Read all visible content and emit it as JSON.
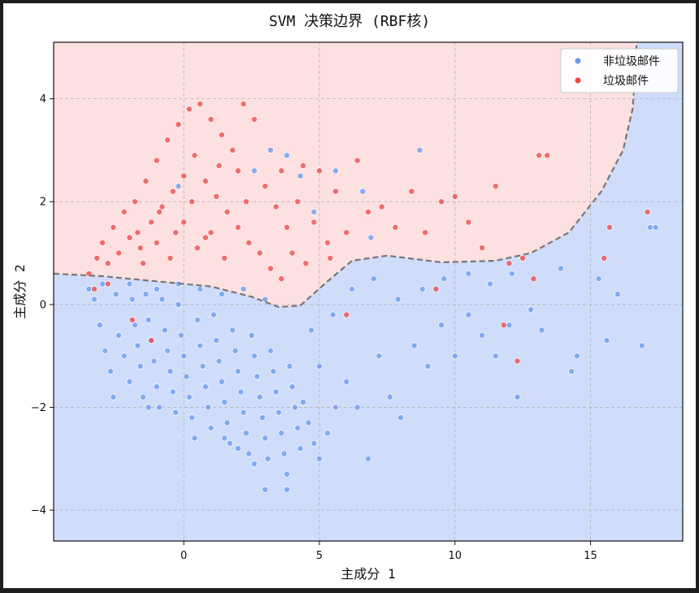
{
  "colors": {
    "background_frame": "#1e1e1e",
    "class0_region": "#cfdcfa",
    "class1_region": "#fde0e0",
    "class0_point": "#6699ee",
    "class1_point": "#ee4444",
    "boundary": "#777777",
    "grid": "#b5b5b5"
  },
  "chart_data": {
    "type": "scatter",
    "title": "SVM 决策边界 (RBF核)",
    "xlabel": "主成分 1",
    "ylabel": "主成分 2",
    "xlim": [
      -4.8,
      18.4
    ],
    "ylim": [
      -4.6,
      5.1
    ],
    "xticks": [
      0,
      5,
      10,
      15
    ],
    "yticks": [
      -4,
      -2,
      0,
      2,
      4
    ],
    "x_tick_labels": [
      "0",
      "5",
      "10",
      "15"
    ],
    "y_tick_labels": [
      "−4",
      "−2",
      "0",
      "2",
      "4"
    ],
    "grid": true,
    "grid_style": "dashed",
    "legend_position": "top-right",
    "decision_boundary": {
      "style": "dashed",
      "region_above": "垃圾邮件",
      "region_below": "非垃圾邮件",
      "points": [
        [
          -4.8,
          0.6
        ],
        [
          -3,
          0.55
        ],
        [
          -1,
          0.45
        ],
        [
          1,
          0.35
        ],
        [
          2.5,
          0.15
        ],
        [
          3.5,
          -0.05
        ],
        [
          4.3,
          -0.02
        ],
        [
          5.3,
          0.45
        ],
        [
          6.2,
          0.85
        ],
        [
          7.5,
          0.95
        ],
        [
          9.5,
          0.82
        ],
        [
          11.5,
          0.85
        ],
        [
          12.8,
          1.0
        ],
        [
          14.2,
          1.4
        ],
        [
          15.4,
          2.2
        ],
        [
          16.2,
          3.0
        ],
        [
          16.55,
          3.8
        ],
        [
          16.65,
          4.5
        ],
        [
          16.7,
          5.1
        ]
      ]
    },
    "series": [
      {
        "name": "非垃圾邮件",
        "points": [
          [
            -3.5,
            0.3
          ],
          [
            -3.3,
            0.1
          ],
          [
            -3.1,
            -0.4
          ],
          [
            -2.9,
            -0.9
          ],
          [
            -2.7,
            -1.3
          ],
          [
            -2.5,
            0.2
          ],
          [
            -2.4,
            -0.6
          ],
          [
            -2.2,
            -1.0
          ],
          [
            -2.0,
            -1.5
          ],
          [
            -1.9,
            0.1
          ],
          [
            -1.8,
            -0.4
          ],
          [
            -1.7,
            -0.8
          ],
          [
            -1.6,
            -1.2
          ],
          [
            -1.5,
            -1.8
          ],
          [
            -1.4,
            0.2
          ],
          [
            -1.3,
            -0.3
          ],
          [
            -1.2,
            -0.7
          ],
          [
            -1.1,
            -1.1
          ],
          [
            -1.0,
            -1.6
          ],
          [
            -0.9,
            -2.0
          ],
          [
            -0.8,
            0.1
          ],
          [
            -0.7,
            -0.5
          ],
          [
            -0.6,
            -0.9
          ],
          [
            -0.5,
            -1.3
          ],
          [
            -0.4,
            -1.7
          ],
          [
            -0.3,
            -2.1
          ],
          [
            -0.2,
            0.0
          ],
          [
            -0.1,
            -0.6
          ],
          [
            0.0,
            -1.0
          ],
          [
            0.1,
            -1.4
          ],
          [
            0.2,
            -1.8
          ],
          [
            0.3,
            -2.2
          ],
          [
            0.4,
            -2.6
          ],
          [
            0.5,
            -0.3
          ],
          [
            0.6,
            -0.8
          ],
          [
            0.7,
            -1.2
          ],
          [
            0.8,
            -1.6
          ],
          [
            0.9,
            -2.0
          ],
          [
            1.0,
            -2.4
          ],
          [
            1.1,
            -0.2
          ],
          [
            1.2,
            -0.7
          ],
          [
            1.3,
            -1.1
          ],
          [
            1.4,
            -1.5
          ],
          [
            1.5,
            -1.9
          ],
          [
            1.6,
            -2.3
          ],
          [
            1.7,
            -2.7
          ],
          [
            1.8,
            -0.5
          ],
          [
            1.9,
            -0.9
          ],
          [
            2.0,
            -1.3
          ],
          [
            2.1,
            -1.7
          ],
          [
            2.2,
            -2.1
          ],
          [
            2.3,
            -2.5
          ],
          [
            2.4,
            -2.9
          ],
          [
            2.5,
            -0.6
          ],
          [
            2.6,
            -1.0
          ],
          [
            2.7,
            -1.4
          ],
          [
            2.8,
            -1.8
          ],
          [
            2.9,
            -2.2
          ],
          [
            3.0,
            -2.6
          ],
          [
            3.1,
            -3.0
          ],
          [
            3.2,
            -0.9
          ],
          [
            3.3,
            -1.3
          ],
          [
            3.4,
            -1.7
          ],
          [
            3.5,
            -2.1
          ],
          [
            3.6,
            -2.5
          ],
          [
            3.7,
            -2.9
          ],
          [
            3.8,
            -3.3
          ],
          [
            3.9,
            -1.2
          ],
          [
            4.0,
            -1.6
          ],
          [
            4.1,
            -2.0
          ],
          [
            4.2,
            -2.4
          ],
          [
            4.3,
            -2.8
          ],
          [
            4.4,
            -1.9
          ],
          [
            4.6,
            -2.3
          ],
          [
            4.8,
            -2.7
          ],
          [
            5.0,
            -3.0
          ],
          [
            5.3,
            -2.5
          ],
          [
            5.6,
            -2.0
          ],
          [
            6.0,
            -1.5
          ],
          [
            6.4,
            -2.0
          ],
          [
            6.8,
            -3.0
          ],
          [
            7.2,
            -1.0
          ],
          [
            7.6,
            -1.8
          ],
          [
            8.0,
            -2.2
          ],
          [
            8.5,
            -0.8
          ],
          [
            9.0,
            -1.2
          ],
          [
            9.5,
            -0.4
          ],
          [
            10.0,
            -1.0
          ],
          [
            10.5,
            -0.2
          ],
          [
            11.0,
            -0.6
          ],
          [
            11.5,
            -1.0
          ],
          [
            12.0,
            -0.4
          ],
          [
            12.3,
            -1.8
          ],
          [
            12.8,
            -0.1
          ],
          [
            13.2,
            -0.5
          ],
          [
            13.9,
            0.7
          ],
          [
            14.3,
            -1.3
          ],
          [
            14.5,
            -1.0
          ],
          [
            15.3,
            0.5
          ],
          [
            15.6,
            -0.7
          ],
          [
            16.0,
            0.2
          ],
          [
            16.9,
            -0.8
          ],
          [
            17.2,
            1.5
          ],
          [
            17.4,
            1.5
          ],
          [
            3.0,
            -3.6
          ],
          [
            3.8,
            -3.6
          ],
          [
            2.6,
            -3.1
          ],
          [
            2.0,
            -2.8
          ],
          [
            1.5,
            -2.6
          ],
          [
            5.0,
            -1.2
          ],
          [
            4.7,
            -0.5
          ],
          [
            5.5,
            -0.2
          ],
          [
            6.2,
            0.3
          ],
          [
            7.0,
            0.5
          ],
          [
            7.9,
            0.1
          ],
          [
            8.8,
            0.3
          ],
          [
            9.6,
            0.5
          ],
          [
            10.5,
            0.6
          ],
          [
            11.3,
            0.4
          ],
          [
            12.1,
            0.6
          ],
          [
            3.0,
            0.1
          ],
          [
            2.2,
            0.3
          ],
          [
            1.4,
            0.2
          ],
          [
            0.6,
            0.3
          ],
          [
            -0.2,
            0.4
          ],
          [
            -1.0,
            0.3
          ],
          [
            -2.0,
            0.4
          ],
          [
            -3.0,
            0.4
          ],
          [
            -2.6,
            -1.8
          ],
          [
            -1.3,
            -2.0
          ],
          [
            8.7,
            3.0
          ],
          [
            3.8,
            2.9
          ],
          [
            4.3,
            2.5
          ],
          [
            5.6,
            2.6
          ],
          [
            6.6,
            2.2
          ],
          [
            3.2,
            3.0
          ],
          [
            2.6,
            2.6
          ],
          [
            -0.2,
            2.3
          ],
          [
            4.8,
            1.8
          ],
          [
            6.9,
            1.3
          ]
        ]
      },
      {
        "name": "垃圾邮件",
        "points": [
          [
            -3.5,
            0.6
          ],
          [
            -3.2,
            0.9
          ],
          [
            -3.0,
            1.2
          ],
          [
            -2.8,
            0.8
          ],
          [
            -2.6,
            1.5
          ],
          [
            -2.4,
            1.0
          ],
          [
            -2.2,
            1.8
          ],
          [
            -2.0,
            1.3
          ],
          [
            -1.8,
            2.0
          ],
          [
            -1.6,
            1.1
          ],
          [
            -1.4,
            2.4
          ],
          [
            -1.2,
            1.6
          ],
          [
            -1.0,
            2.8
          ],
          [
            -0.8,
            1.9
          ],
          [
            -0.6,
            3.2
          ],
          [
            -0.4,
            2.2
          ],
          [
            -0.2,
            3.5
          ],
          [
            0.0,
            2.5
          ],
          [
            0.2,
            3.8
          ],
          [
            0.4,
            2.9
          ],
          [
            0.6,
            3.9
          ],
          [
            0.8,
            2.4
          ],
          [
            1.0,
            3.6
          ],
          [
            1.2,
            2.1
          ],
          [
            1.4,
            3.3
          ],
          [
            1.6,
            1.8
          ],
          [
            1.8,
            3.0
          ],
          [
            2.0,
            1.5
          ],
          [
            2.2,
            3.9
          ],
          [
            2.4,
            1.2
          ],
          [
            2.6,
            3.6
          ],
          [
            2.8,
            1.0
          ],
          [
            3.0,
            2.3
          ],
          [
            3.2,
            0.7
          ],
          [
            3.4,
            1.9
          ],
          [
            3.6,
            0.5
          ],
          [
            3.8,
            1.5
          ],
          [
            4.0,
            1.0
          ],
          [
            4.2,
            2.0
          ],
          [
            4.5,
            0.8
          ],
          [
            4.8,
            1.6
          ],
          [
            5.0,
            2.6
          ],
          [
            5.3,
            1.2
          ],
          [
            5.6,
            2.2
          ],
          [
            6.0,
            1.4
          ],
          [
            6.4,
            2.8
          ],
          [
            6.8,
            1.8
          ],
          [
            7.3,
            1.9
          ],
          [
            7.8,
            1.5
          ],
          [
            8.4,
            2.2
          ],
          [
            8.9,
            1.4
          ],
          [
            9.5,
            2.0
          ],
          [
            10.0,
            2.1
          ],
          [
            10.5,
            1.6
          ],
          [
            11.0,
            1.1
          ],
          [
            11.5,
            2.3
          ],
          [
            12.0,
            0.8
          ],
          [
            12.5,
            0.9
          ],
          [
            13.4,
            2.9
          ],
          [
            13.1,
            2.9
          ],
          [
            15.7,
            1.5
          ],
          [
            17.1,
            1.8
          ],
          [
            15.5,
            0.9
          ],
          [
            12.3,
            -1.1
          ],
          [
            9.3,
            0.3
          ],
          [
            6.0,
            -0.2
          ],
          [
            -1.5,
            0.8
          ],
          [
            -1.0,
            1.2
          ],
          [
            -0.5,
            0.9
          ],
          [
            0.0,
            1.6
          ],
          [
            0.5,
            1.1
          ],
          [
            1.0,
            1.4
          ],
          [
            1.5,
            0.9
          ],
          [
            2.0,
            2.6
          ],
          [
            -2.8,
            0.4
          ],
          [
            -3.3,
            0.3
          ],
          [
            -1.9,
            -0.3
          ],
          [
            -1.2,
            -0.7
          ],
          [
            0.3,
            2.0
          ],
          [
            0.8,
            1.3
          ],
          [
            -0.3,
            1.4
          ],
          [
            -0.9,
            1.8
          ],
          [
            -1.7,
            1.4
          ],
          [
            1.3,
            2.7
          ],
          [
            2.3,
            2.0
          ],
          [
            3.6,
            2.6
          ],
          [
            4.4,
            2.7
          ],
          [
            5.4,
            0.9
          ],
          [
            11.8,
            -0.4
          ],
          [
            12.9,
            0.5
          ]
        ]
      }
    ]
  },
  "legend": {
    "items": [
      "非垃圾邮件",
      "垃圾邮件"
    ]
  }
}
